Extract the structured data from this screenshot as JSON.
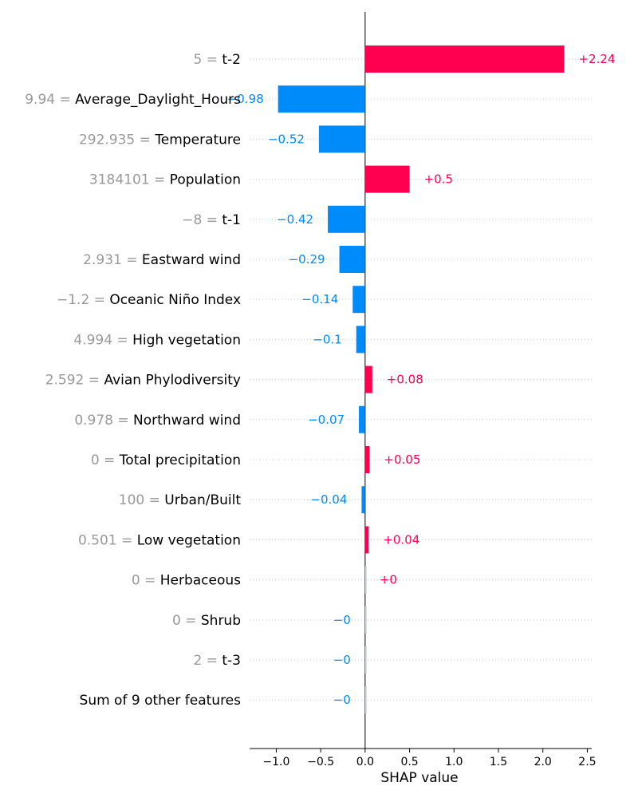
{
  "chart_data": {
    "type": "bar",
    "orientation": "horizontal",
    "title": "",
    "xlabel": "SHAP value",
    "ylabel": "",
    "xlim": [
      -1.3,
      2.55
    ],
    "xticks": [
      -1.0,
      -0.5,
      0.0,
      0.5,
      1.0,
      1.5,
      2.0,
      2.5
    ],
    "xtick_labels": [
      "−1.0",
      "−0.5",
      "0.0",
      "0.5",
      "1.0",
      "1.5",
      "2.0",
      "2.5"
    ],
    "grid": "horizontal dotted lines per feature",
    "colors": {
      "positive": "#ff0051",
      "negative": "#008bfb",
      "feature_value": "#999999",
      "feature_name": "#000000"
    },
    "features": [
      {
        "feature_value": "5",
        "feature_name": "t-2",
        "value": 2.24,
        "label": "+2.24"
      },
      {
        "feature_value": "9.94",
        "feature_name": "Average_Daylight_Hours",
        "value": -0.98,
        "label": "−0.98"
      },
      {
        "feature_value": "292.935",
        "feature_name": "Temperature",
        "value": -0.52,
        "label": "−0.52"
      },
      {
        "feature_value": "3184101",
        "feature_name": "Population",
        "value": 0.5,
        "label": "+0.5"
      },
      {
        "feature_value": "−8",
        "feature_name": "t-1",
        "value": -0.42,
        "label": "−0.42"
      },
      {
        "feature_value": "2.931",
        "feature_name": "Eastward wind",
        "value": -0.29,
        "label": "−0.29"
      },
      {
        "feature_value": "−1.2",
        "feature_name": "Oceanic Niño Index",
        "value": -0.14,
        "label": "−0.14"
      },
      {
        "feature_value": "4.994",
        "feature_name": "High vegetation",
        "value": -0.1,
        "label": "−0.1"
      },
      {
        "feature_value": "2.592",
        "feature_name": "Avian Phylodiversity",
        "value": 0.08,
        "label": "+0.08"
      },
      {
        "feature_value": "0.978",
        "feature_name": "Northward wind",
        "value": -0.07,
        "label": "−0.07"
      },
      {
        "feature_value": "0",
        "feature_name": "Total precipitation",
        "value": 0.05,
        "label": "+0.05"
      },
      {
        "feature_value": "100",
        "feature_name": "Urban/Built",
        "value": -0.04,
        "label": "−0.04"
      },
      {
        "feature_value": "0.501",
        "feature_name": "Low vegetation",
        "value": 0.04,
        "label": "+0.04"
      },
      {
        "feature_value": "0",
        "feature_name": "Herbaceous",
        "value": 0.0,
        "label": "+0"
      },
      {
        "feature_value": "0",
        "feature_name": "Shrub",
        "value": -0.0,
        "label": "−0"
      },
      {
        "feature_value": "2",
        "feature_name": "t-3",
        "value": -0.0,
        "label": "−0"
      },
      {
        "feature_value": "",
        "feature_name": "Sum of 9 other features",
        "value": -0.0,
        "label": "−0"
      }
    ]
  }
}
